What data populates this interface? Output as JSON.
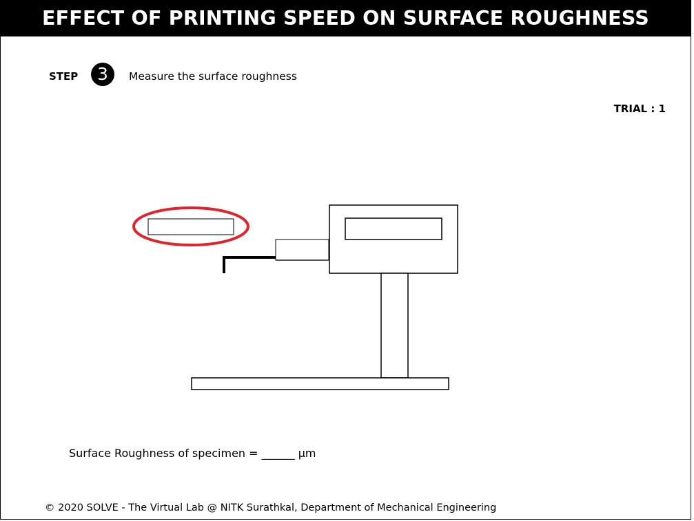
{
  "title": "EFFECT OF PRINTING SPEED ON SURFACE ROUGHNESS",
  "step": {
    "label": "STEP",
    "number": "3",
    "instruction": "Measure the surface roughness"
  },
  "trial": "TRIAL : 1",
  "result": {
    "label": "Surface Roughness of specimen =",
    "value_blank": "______",
    "unit": "μm"
  },
  "footer": "© 2020 SOLVE - The Virtual Lab @ NITK Surathkal, Department of Mechanical Engineering",
  "colors": {
    "highlight": "#e0242b",
    "title_background": "#000000",
    "title_text": "#ffffff"
  }
}
